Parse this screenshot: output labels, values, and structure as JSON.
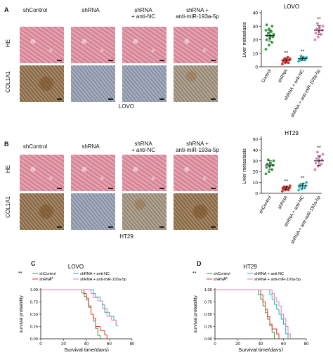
{
  "panels": {
    "A": {
      "letter": "A",
      "columns": [
        "shControl",
        "shRNA",
        "shRNA\n+ anti-NC",
        "shRNA +\nanti-miR-193a-5p"
      ],
      "rows": [
        "HE",
        "COL1A1"
      ],
      "caption": "LOVO"
    },
    "B": {
      "letter": "B",
      "columns": [
        "shControl",
        "shRNA",
        "shRNA\n+ anti-NC",
        "shRNA +\nanti-miR-193a-5p"
      ],
      "rows": [
        "HE",
        "COL1A1"
      ],
      "caption": "HT29"
    },
    "C": {
      "letter": "C"
    },
    "D": {
      "letter": "D"
    }
  },
  "colors": {
    "control": "#2e9e3e",
    "shrna": "#e8302c",
    "antinc": "#1fb3b0",
    "antimir": "#e87fb8",
    "black": "#111111"
  },
  "chart_data": [
    {
      "id": "A-scatter",
      "type": "scatter",
      "title": "LOVO",
      "ylabel": "Liver metastasis",
      "categories": [
        "Control",
        "shRNA",
        "shRNA + anti-NC",
        "shRNA + anti-miR-193a-5p"
      ],
      "ylim": [
        0,
        40
      ],
      "yticks": [
        0,
        10,
        20,
        30,
        40
      ],
      "significance": [
        "",
        "**",
        "**",
        "**"
      ],
      "series": [
        {
          "category": "Control",
          "values": [
            13,
            16,
            18,
            20,
            21,
            22,
            23,
            23,
            24,
            25,
            26,
            27,
            28,
            30,
            31
          ],
          "mean": 23,
          "sd": 4
        },
        {
          "category": "shRNA",
          "values": [
            2,
            3,
            3,
            4,
            4,
            5,
            5,
            5,
            6,
            6,
            7
          ],
          "mean": 5,
          "sd": 1.5
        },
        {
          "category": "shRNA + anti-NC",
          "values": [
            4,
            5,
            5,
            5,
            6,
            6,
            6,
            7,
            7,
            8
          ],
          "mean": 6,
          "sd": 1.2
        },
        {
          "category": "shRNA + anti-miR-193a-5p",
          "values": [
            20,
            22,
            24,
            25,
            26,
            27,
            28,
            29,
            30,
            32
          ],
          "mean": 27,
          "sd": 3.5
        }
      ]
    },
    {
      "id": "B-scatter",
      "type": "scatter",
      "title": "HT29",
      "ylabel": "Liver metastasis",
      "categories": [
        "shControl",
        "shRNA",
        "shRNA + anti-NC",
        "shRNA + anti-miR-193a-5p"
      ],
      "ylim": [
        0,
        50
      ],
      "yticks": [
        0,
        10,
        20,
        30,
        40,
        50
      ],
      "significance": [
        "",
        "**",
        "**",
        "**"
      ],
      "series": [
        {
          "category": "shControl",
          "values": [
            18,
            20,
            22,
            24,
            25,
            26,
            27,
            28,
            30,
            31
          ],
          "mean": 26,
          "sd": 4
        },
        {
          "category": "shRNA",
          "values": [
            2,
            3,
            3,
            4,
            5,
            5,
            6,
            6,
            7
          ],
          "mean": 5,
          "sd": 1.5
        },
        {
          "category": "shRNA + anti-NC",
          "values": [
            3,
            4,
            5,
            6,
            7,
            7,
            8,
            9,
            10
          ],
          "mean": 7,
          "sd": 2
        },
        {
          "category": "shRNA + anti-miR-193a-5p",
          "values": [
            22,
            25,
            27,
            28,
            30,
            31,
            32,
            34,
            36,
            38
          ],
          "mean": 30,
          "sd": 4.5
        }
      ]
    },
    {
      "id": "C-km",
      "type": "line",
      "title": "LOVO",
      "xlabel": "Survival time(days)",
      "ylabel": "survival probability",
      "xlim": [
        0,
        80
      ],
      "ylim": [
        0,
        1
      ],
      "xticks": [
        0,
        20,
        40,
        60,
        80
      ],
      "yticks": [
        "0.00",
        "0.25",
        "0.50",
        "0.75",
        "1.00"
      ],
      "annotations": [
        "**",
        "**"
      ],
      "series": [
        {
          "name": "shControl",
          "color": "#2e9e3e",
          "x": [
            0,
            34,
            36,
            38,
            40,
            42,
            44,
            46,
            48,
            50,
            52
          ],
          "y": [
            1,
            1,
            0.93,
            0.86,
            0.79,
            0.64,
            0.5,
            0.36,
            0.21,
            0.07,
            0
          ]
        },
        {
          "name": "shRNA",
          "color": "#e8302c",
          "x": [
            0,
            36,
            38,
            40,
            42,
            44,
            46,
            48,
            52,
            56,
            58
          ],
          "y": [
            1,
            1,
            0.92,
            0.83,
            0.67,
            0.5,
            0.42,
            0.25,
            0.17,
            0.08,
            0
          ]
        },
        {
          "name": "shRNA + anti-NC",
          "color": "#1fb3b0",
          "x": [
            0,
            44,
            46,
            48,
            52,
            54,
            56,
            60,
            64,
            66,
            68
          ],
          "y": [
            1,
            1,
            0.92,
            0.85,
            0.77,
            0.69,
            0.54,
            0.46,
            0.38,
            0.27,
            0.27
          ]
        },
        {
          "name": "shRNA + anti-miR-193a-5p",
          "color": "#e87fb8",
          "x": [
            0,
            42,
            44,
            46,
            50,
            54,
            58,
            62,
            66,
            68
          ],
          "y": [
            1,
            1,
            0.92,
            0.84,
            0.77,
            0.62,
            0.46,
            0.38,
            0.27,
            0.27
          ]
        }
      ]
    },
    {
      "id": "D-km",
      "type": "line",
      "title": "HT29",
      "xlabel": "Survival time(days)",
      "ylabel": "survival probability",
      "xlim": [
        0,
        80
      ],
      "ylim": [
        0,
        1
      ],
      "xticks": [
        0,
        20,
        40,
        60,
        80
      ],
      "yticks": [
        "0.00",
        "0.25",
        "0.50",
        "0.75",
        "1.00"
      ],
      "annotations": [
        "**",
        "**"
      ],
      "series": [
        {
          "name": "shControl",
          "color": "#2e9e3e",
          "x": [
            0,
            36,
            38,
            40,
            42,
            44,
            46,
            48,
            50,
            52
          ],
          "y": [
            1,
            1,
            0.9,
            0.8,
            0.67,
            0.53,
            0.4,
            0.27,
            0.13,
            0
          ]
        },
        {
          "name": "shRNA",
          "color": "#e8302c",
          "x": [
            0,
            38,
            40,
            42,
            44,
            46,
            48,
            50,
            54,
            56
          ],
          "y": [
            1,
            1,
            0.9,
            0.75,
            0.6,
            0.45,
            0.3,
            0.2,
            0.1,
            0
          ]
        },
        {
          "name": "shRNA + anti-NC",
          "color": "#1fb3b0",
          "x": [
            0,
            44,
            48,
            50,
            52,
            54,
            56,
            58,
            60,
            62,
            64
          ],
          "y": [
            1,
            1,
            0.9,
            0.8,
            0.7,
            0.6,
            0.5,
            0.4,
            0.3,
            0.1,
            0
          ]
        },
        {
          "name": "shRNA + anti-miR-193a-5p",
          "color": "#e87fb8",
          "x": [
            0,
            46,
            50,
            52,
            54,
            56,
            58,
            60,
            62,
            64,
            66
          ],
          "y": [
            1,
            1,
            0.92,
            0.83,
            0.75,
            0.67,
            0.5,
            0.42,
            0.25,
            0.1,
            0
          ]
        }
      ]
    }
  ]
}
